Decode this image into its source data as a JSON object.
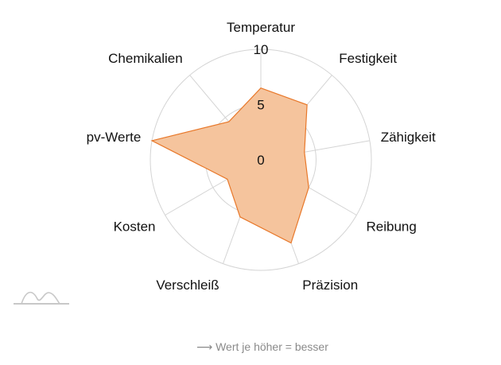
{
  "chart_data": {
    "type": "radar",
    "axes": [
      "Temperatur",
      "Festigkeit",
      "Zähigkeit",
      "Reibung",
      "Präzision",
      "Verschleiß",
      "Kosten",
      "pv-Werte",
      "Chemikalien"
    ],
    "values": [
      6.5,
      6.5,
      4,
      5,
      8,
      5.5,
      3.5,
      10,
      4.5
    ],
    "rlim": [
      0,
      10
    ],
    "ticks": [
      "0",
      "5",
      "10"
    ],
    "colors": {
      "fill": "#f5c49d",
      "stroke": "#e8782a",
      "grid": "#d4d4d4"
    }
  },
  "footnote": "⟶ Wert je höher = besser",
  "logo_icon": "wave-logo-icon"
}
